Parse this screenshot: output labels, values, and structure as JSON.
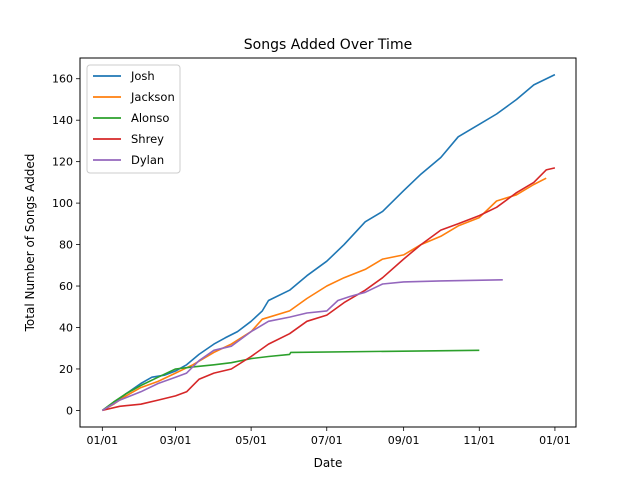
{
  "chart_data": {
    "type": "line",
    "title": "Songs Added Over Time",
    "xlabel": "Date",
    "ylabel": "Total Number of Songs Added",
    "x_ticks": [
      "01/01",
      "03/01",
      "05/01",
      "07/01",
      "09/01",
      "11/01",
      "01/01"
    ],
    "y_ticks": [
      "0",
      "20",
      "40",
      "60",
      "80",
      "100",
      "120",
      "140",
      "160"
    ],
    "xlim": [
      "2020-12-14",
      "2022-01-18"
    ],
    "ylim": [
      -8,
      170
    ],
    "grid": false,
    "legend_position": "top-left",
    "series": [
      {
        "name": "Josh",
        "color": "#1f77b4",
        "points": [
          [
            "2021-01-01",
            0
          ],
          [
            "2021-01-10",
            3
          ],
          [
            "2021-01-20",
            8
          ],
          [
            "2021-02-01",
            13
          ],
          [
            "2021-02-10",
            16
          ],
          [
            "2021-02-20",
            17
          ],
          [
            "2021-03-01",
            19
          ],
          [
            "2021-03-10",
            22
          ],
          [
            "2021-03-20",
            27
          ],
          [
            "2021-04-01",
            32
          ],
          [
            "2021-04-10",
            35
          ],
          [
            "2021-04-20",
            38
          ],
          [
            "2021-05-01",
            43
          ],
          [
            "2021-05-10",
            48
          ],
          [
            "2021-05-15",
            53
          ],
          [
            "2021-06-01",
            58
          ],
          [
            "2021-06-15",
            65
          ],
          [
            "2021-07-01",
            72
          ],
          [
            "2021-07-15",
            80
          ],
          [
            "2021-08-01",
            91
          ],
          [
            "2021-08-15",
            96
          ],
          [
            "2021-09-01",
            106
          ],
          [
            "2021-09-15",
            114
          ],
          [
            "2021-10-01",
            122
          ],
          [
            "2021-10-15",
            132
          ],
          [
            "2021-11-01",
            138
          ],
          [
            "2021-11-15",
            143
          ],
          [
            "2021-12-01",
            150
          ],
          [
            "2021-12-15",
            157
          ],
          [
            "2022-01-01",
            162
          ]
        ]
      },
      {
        "name": "Jackson",
        "color": "#ff7f0e",
        "points": [
          [
            "2021-01-01",
            0
          ],
          [
            "2021-01-10",
            3
          ],
          [
            "2021-01-20",
            7
          ],
          [
            "2021-02-01",
            11
          ],
          [
            "2021-02-15",
            14
          ],
          [
            "2021-03-01",
            18
          ],
          [
            "2021-03-15",
            22
          ],
          [
            "2021-04-01",
            28
          ],
          [
            "2021-04-15",
            32
          ],
          [
            "2021-05-01",
            38
          ],
          [
            "2021-05-10",
            44
          ],
          [
            "2021-06-01",
            48
          ],
          [
            "2021-06-15",
            54
          ],
          [
            "2021-07-01",
            60
          ],
          [
            "2021-07-15",
            64
          ],
          [
            "2021-08-01",
            68
          ],
          [
            "2021-08-15",
            73
          ],
          [
            "2021-09-01",
            75
          ],
          [
            "2021-09-15",
            80
          ],
          [
            "2021-10-01",
            84
          ],
          [
            "2021-10-15",
            89
          ],
          [
            "2021-11-01",
            93
          ],
          [
            "2021-11-15",
            101
          ],
          [
            "2021-12-01",
            104
          ],
          [
            "2021-12-15",
            109
          ],
          [
            "2021-12-25",
            112
          ]
        ]
      },
      {
        "name": "Alonso",
        "color": "#2ca02c",
        "points": [
          [
            "2021-01-01",
            0
          ],
          [
            "2021-01-10",
            4
          ],
          [
            "2021-01-20",
            8
          ],
          [
            "2021-02-01",
            12
          ],
          [
            "2021-02-15",
            16
          ],
          [
            "2021-03-01",
            20
          ],
          [
            "2021-03-15",
            21
          ],
          [
            "2021-04-01",
            22
          ],
          [
            "2021-04-15",
            23
          ],
          [
            "2021-05-01",
            25
          ],
          [
            "2021-05-15",
            26
          ],
          [
            "2021-06-01",
            27
          ],
          [
            "2021-06-02",
            28
          ],
          [
            "2021-11-01",
            29
          ]
        ]
      },
      {
        "name": "Shrey",
        "color": "#d62728",
        "points": [
          [
            "2021-01-01",
            0
          ],
          [
            "2021-01-15",
            2
          ],
          [
            "2021-02-01",
            3
          ],
          [
            "2021-02-15",
            5
          ],
          [
            "2021-03-01",
            7
          ],
          [
            "2021-03-10",
            9
          ],
          [
            "2021-03-20",
            15
          ],
          [
            "2021-04-01",
            18
          ],
          [
            "2021-04-15",
            20
          ],
          [
            "2021-05-01",
            26
          ],
          [
            "2021-05-15",
            32
          ],
          [
            "2021-06-01",
            37
          ],
          [
            "2021-06-15",
            43
          ],
          [
            "2021-07-01",
            46
          ],
          [
            "2021-07-15",
            52
          ],
          [
            "2021-08-01",
            58
          ],
          [
            "2021-08-15",
            64
          ],
          [
            "2021-09-01",
            73
          ],
          [
            "2021-09-15",
            80
          ],
          [
            "2021-10-01",
            87
          ],
          [
            "2021-10-15",
            90
          ],
          [
            "2021-11-01",
            94
          ],
          [
            "2021-11-15",
            98
          ],
          [
            "2021-12-01",
            105
          ],
          [
            "2021-12-15",
            110
          ],
          [
            "2021-12-25",
            116
          ],
          [
            "2022-01-01",
            117
          ]
        ]
      },
      {
        "name": "Dylan",
        "color": "#9467bd",
        "points": [
          [
            "2021-01-01",
            0
          ],
          [
            "2021-01-15",
            5
          ],
          [
            "2021-02-01",
            9
          ],
          [
            "2021-02-15",
            13
          ],
          [
            "2021-03-01",
            16
          ],
          [
            "2021-03-10",
            18
          ],
          [
            "2021-03-20",
            24
          ],
          [
            "2021-04-01",
            29
          ],
          [
            "2021-04-15",
            31
          ],
          [
            "2021-05-01",
            38
          ],
          [
            "2021-05-15",
            43
          ],
          [
            "2021-06-01",
            45
          ],
          [
            "2021-06-15",
            47
          ],
          [
            "2021-07-01",
            48
          ],
          [
            "2021-07-10",
            53
          ],
          [
            "2021-07-20",
            55
          ],
          [
            "2021-08-01",
            57
          ],
          [
            "2021-08-15",
            61
          ],
          [
            "2021-09-01",
            62
          ],
          [
            "2021-10-01",
            62.5
          ],
          [
            "2021-11-20",
            63
          ]
        ]
      }
    ]
  }
}
